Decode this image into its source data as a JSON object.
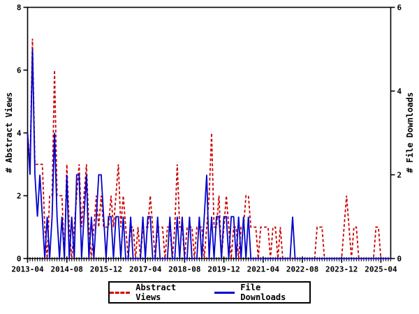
{
  "figure": {
    "background": "#ffffff",
    "axis_color": "#000000",
    "text_color": "#000000"
  },
  "chart_data": {
    "type": "line",
    "x_interval": "monthly",
    "x_start_month": "2013-04",
    "x_end_month": "2025-08",
    "x_tick_labels": [
      "2013-04",
      "2014-08",
      "2015-12",
      "2017-04",
      "2018-08",
      "2019-12",
      "2021-04",
      "2022-08",
      "2023-12",
      "2025-04"
    ],
    "x_tick_indices": [
      0,
      16,
      32,
      48,
      64,
      80,
      96,
      112,
      128,
      144
    ],
    "left_axis": {
      "label": "# Abstract Views",
      "min": 0,
      "max": 8,
      "ticks": [
        0,
        2,
        4,
        6,
        8
      ]
    },
    "right_axis": {
      "label": "# File Downloads",
      "min": 0,
      "max": 6,
      "ticks": [
        0,
        2,
        4,
        6
      ]
    },
    "grid": false,
    "legend_position": "bottom-center",
    "series": [
      {
        "name": "Abstract Views",
        "axis": "left",
        "color": "#cc0000",
        "style": "dashed",
        "values": [
          4,
          3,
          7,
          3,
          3,
          3,
          3,
          1,
          0,
          2,
          2,
          6,
          2,
          2,
          2,
          0,
          3,
          1,
          0,
          1,
          2,
          3,
          1,
          2,
          3,
          1,
          0,
          1,
          2,
          1,
          2,
          1,
          1,
          1,
          2,
          1,
          2,
          3,
          1,
          2,
          1,
          0,
          1,
          1,
          0,
          1,
          0,
          1,
          1,
          1,
          2,
          1,
          0,
          1,
          1,
          1,
          0,
          1,
          1,
          0,
          1,
          3,
          1,
          1,
          0,
          1,
          1,
          1,
          0,
          1,
          1,
          1,
          0,
          1,
          2,
          4,
          1,
          1,
          2,
          0,
          1,
          2,
          1,
          0,
          1,
          1,
          0,
          1,
          1,
          2,
          2,
          1,
          1,
          1,
          0,
          1,
          1,
          1,
          1,
          0,
          1,
          1,
          0,
          1,
          0,
          0,
          0,
          0,
          0,
          0,
          0,
          0,
          0,
          0,
          0,
          0,
          0,
          0,
          1,
          1,
          1,
          0,
          0,
          0,
          0,
          0,
          0,
          0,
          0,
          1,
          2,
          1,
          0,
          1,
          1,
          0,
          0,
          0,
          0,
          0,
          0,
          0,
          1,
          1,
          0,
          0,
          0,
          0,
          0
        ]
      },
      {
        "name": "File Downloads",
        "axis": "right",
        "color": "#0000cc",
        "style": "solid",
        "values": [
          3,
          2,
          5,
          2,
          1,
          2,
          1,
          0,
          1,
          0,
          1,
          3,
          1,
          0,
          1,
          0,
          2,
          0,
          1,
          0,
          2,
          2,
          0,
          1,
          2,
          0,
          1,
          0,
          1,
          2,
          2,
          1,
          0,
          1,
          1,
          0,
          1,
          1,
          0,
          1,
          0,
          0,
          1,
          0,
          0,
          0,
          0,
          1,
          0,
          1,
          1,
          0,
          0,
          1,
          0,
          0,
          0,
          0,
          1,
          0,
          0,
          1,
          0,
          1,
          0,
          0,
          1,
          0,
          0,
          0,
          1,
          0,
          1,
          2,
          0,
          1,
          0,
          1,
          1,
          0,
          1,
          1,
          0,
          1,
          1,
          0,
          1,
          0,
          1,
          0,
          1,
          0,
          0,
          0,
          0,
          0,
          0,
          0,
          0,
          0,
          0,
          0,
          0,
          0,
          0,
          0,
          0,
          0,
          1,
          0,
          0,
          0,
          0,
          0,
          0,
          0,
          0,
          0,
          0,
          0,
          0,
          0,
          0,
          0,
          0,
          0,
          0,
          0,
          0,
          0,
          0,
          0,
          0,
          0,
          0,
          0,
          0,
          0,
          0,
          0,
          0,
          0,
          0,
          0,
          0,
          0,
          0,
          0,
          0
        ]
      }
    ]
  }
}
